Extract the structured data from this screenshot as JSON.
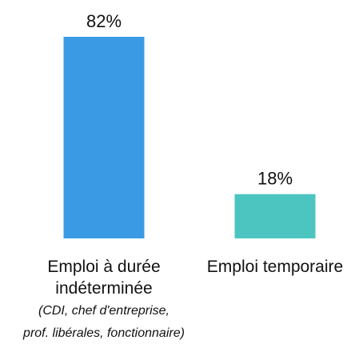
{
  "chart_data": {
    "type": "bar",
    "categories": [
      {
        "label_lines": [
          "Emploi à durée",
          "indéterminée"
        ],
        "sub_lines": [
          "(CDI, chef d'entreprise,",
          "prof. libérales, fonctionnaire)"
        ],
        "value": 82,
        "value_label": "82%",
        "color": "#3a9be4"
      },
      {
        "label_lines": [
          "Emploi temporaire"
        ],
        "sub_lines": [],
        "value": 18,
        "value_label": "18%",
        "color": "#4cc5c0"
      }
    ],
    "ylim": [
      0,
      82
    ],
    "grid": false,
    "legend": "none"
  }
}
